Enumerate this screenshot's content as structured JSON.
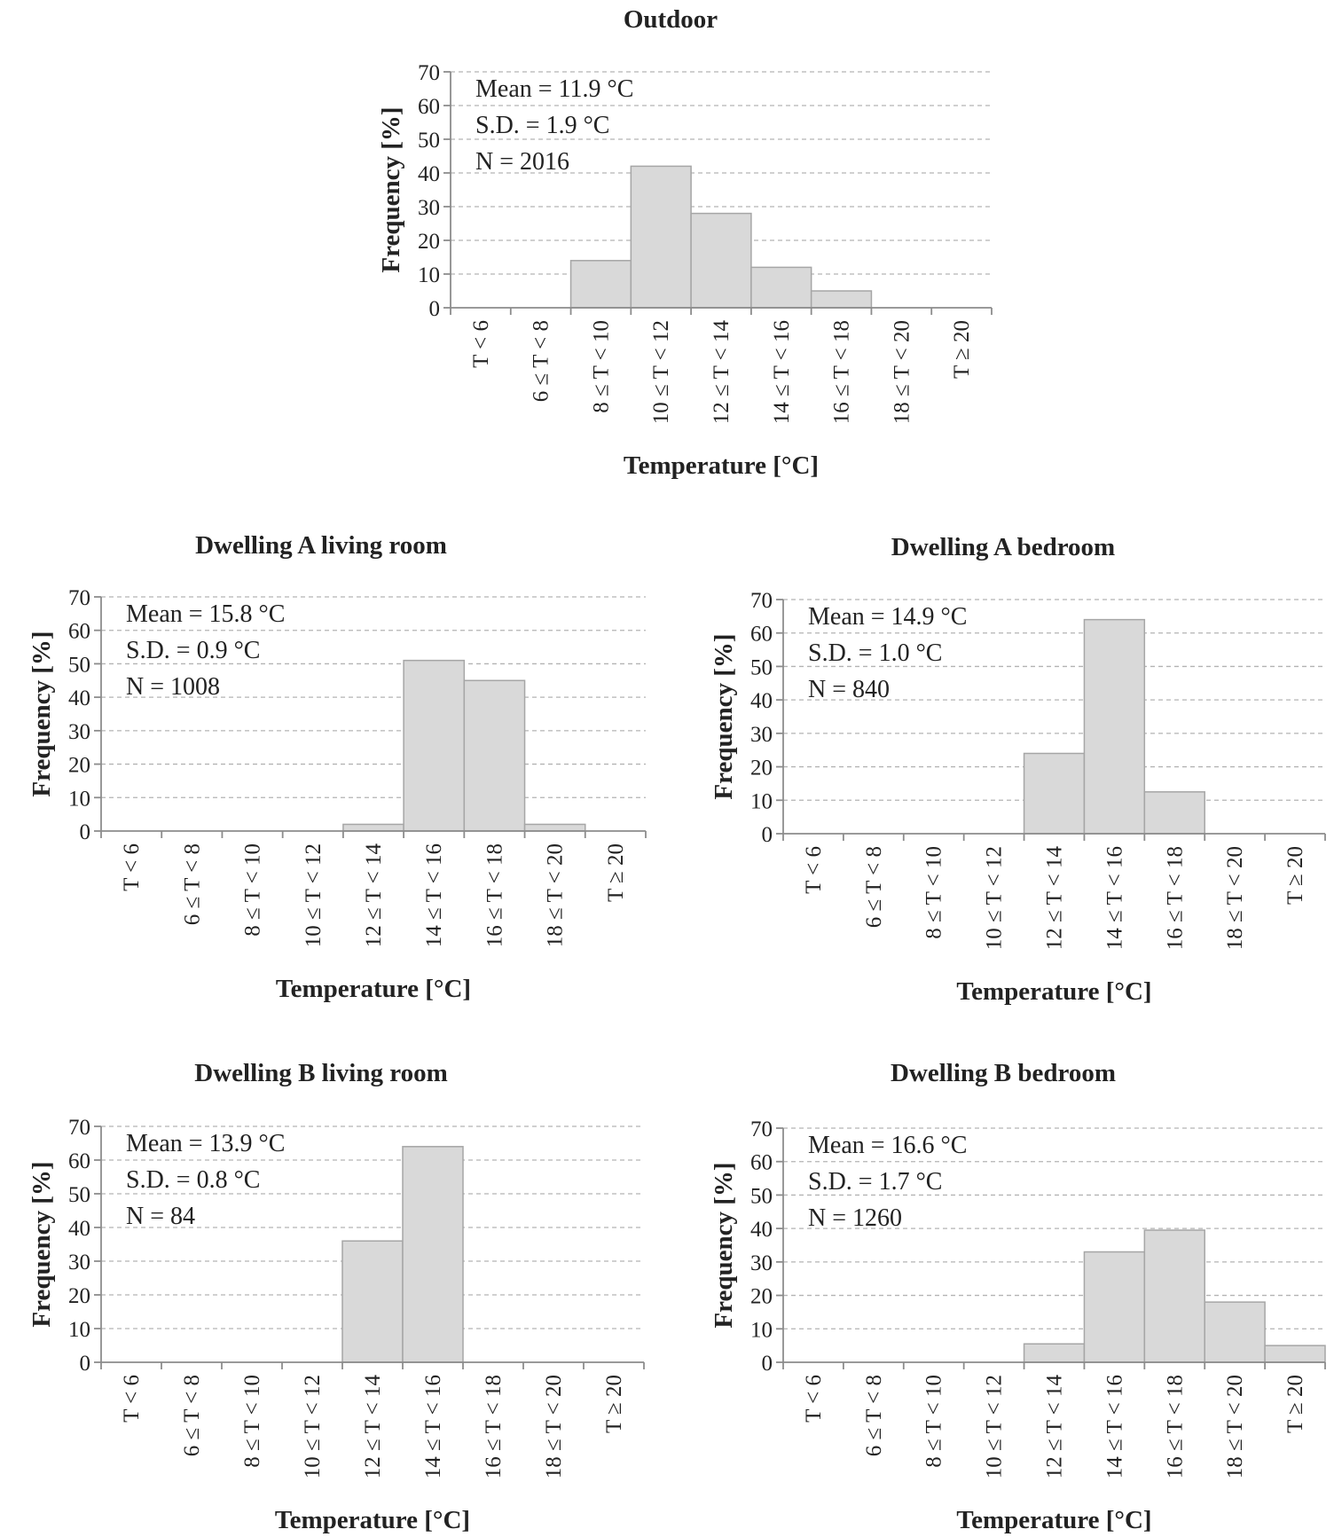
{
  "chart_data": [
    {
      "id": "outdoor",
      "type": "bar",
      "title": "Outdoor",
      "xlabel": "Temperature [°C]",
      "ylabel": "Frequency [%]",
      "ylim": [
        0,
        70
      ],
      "yticks": [
        0,
        10,
        20,
        30,
        40,
        50,
        60,
        70
      ],
      "categories": [
        "T < 6",
        "6 ≤ T < 8",
        "8 ≤ T < 10",
        "10 ≤ T < 12",
        "12 ≤ T < 14",
        "14 ≤ T < 16",
        "16 ≤ T < 18",
        "18 ≤ T < 20",
        "T ≥ 20"
      ],
      "values": [
        0,
        0,
        14,
        42,
        28,
        12,
        5,
        0,
        0
      ],
      "stats": [
        "Mean = 11.9 °C",
        "S.D. = 1.9 °C",
        "N = 2016"
      ],
      "grid": true
    },
    {
      "id": "a-living",
      "type": "bar",
      "title": "Dwelling A living room",
      "xlabel": "Temperature [°C]",
      "ylabel": "Frequency [%]",
      "ylim": [
        0,
        70
      ],
      "yticks": [
        0,
        10,
        20,
        30,
        40,
        50,
        60,
        70
      ],
      "categories": [
        "T < 6",
        "6 ≤ T < 8",
        "8 ≤ T < 10",
        "10 ≤ T < 12",
        "12 ≤ T < 14",
        "14 ≤ T < 16",
        "16 ≤ T < 18",
        "18 ≤ T < 20",
        "T ≥ 20"
      ],
      "values": [
        0,
        0,
        0,
        0,
        2,
        51,
        45,
        2,
        0
      ],
      "stats": [
        "Mean = 15.8 °C",
        "S.D. = 0.9 °C",
        "N = 1008"
      ],
      "grid": true
    },
    {
      "id": "a-bedroom",
      "type": "bar",
      "title": "Dwelling A bedroom",
      "xlabel": "Temperature [°C]",
      "ylabel": "Frequency [%]",
      "ylim": [
        0,
        70
      ],
      "yticks": [
        0,
        10,
        20,
        30,
        40,
        50,
        60,
        70
      ],
      "categories": [
        "T < 6",
        "6 ≤ T < 8",
        "8 ≤ T < 10",
        "10 ≤ T < 12",
        "12 ≤ T < 14",
        "14 ≤ T < 16",
        "16 ≤ T < 18",
        "18 ≤ T < 20",
        "T ≥ 20"
      ],
      "values": [
        0,
        0,
        0,
        0,
        24,
        64,
        12.5,
        0,
        0
      ],
      "stats": [
        "Mean = 14.9 °C",
        "S.D. = 1.0 °C",
        "N = 840"
      ],
      "grid": true
    },
    {
      "id": "b-living",
      "type": "bar",
      "title": "Dwelling B living room",
      "xlabel": "Temperature [°C]",
      "ylabel": "Frequency [%]",
      "ylim": [
        0,
        70
      ],
      "yticks": [
        0,
        10,
        20,
        30,
        40,
        50,
        60,
        70
      ],
      "categories": [
        "T < 6",
        "6 ≤ T < 8",
        "8 ≤ T < 10",
        "10 ≤ T < 12",
        "12 ≤ T < 14",
        "14 ≤ T < 16",
        "16 ≤ T < 18",
        "18 ≤ T < 20",
        "T ≥ 20"
      ],
      "values": [
        0,
        0,
        0,
        0,
        36,
        64,
        0,
        0,
        0
      ],
      "stats": [
        "Mean = 13.9 °C",
        "S.D. = 0.8 °C",
        "N = 84"
      ],
      "grid": true
    },
    {
      "id": "b-bedroom",
      "type": "bar",
      "title": "Dwelling B bedroom",
      "xlabel": "Temperature [°C]",
      "ylabel": "Frequency [%]",
      "ylim": [
        0,
        70
      ],
      "yticks": [
        0,
        10,
        20,
        30,
        40,
        50,
        60,
        70
      ],
      "categories": [
        "T < 6",
        "6 ≤ T < 8",
        "8 ≤ T < 10",
        "10 ≤ T < 12",
        "12 ≤ T < 14",
        "14 ≤ T < 16",
        "16 ≤ T < 18",
        "18 ≤ T < 20",
        "T ≥ 20"
      ],
      "values": [
        0,
        0,
        0,
        0,
        5.5,
        33,
        39.5,
        18,
        5
      ],
      "stats": [
        "Mean = 16.6 °C",
        "S.D. = 1.7 °C",
        "N = 1260"
      ],
      "grid": true
    }
  ]
}
